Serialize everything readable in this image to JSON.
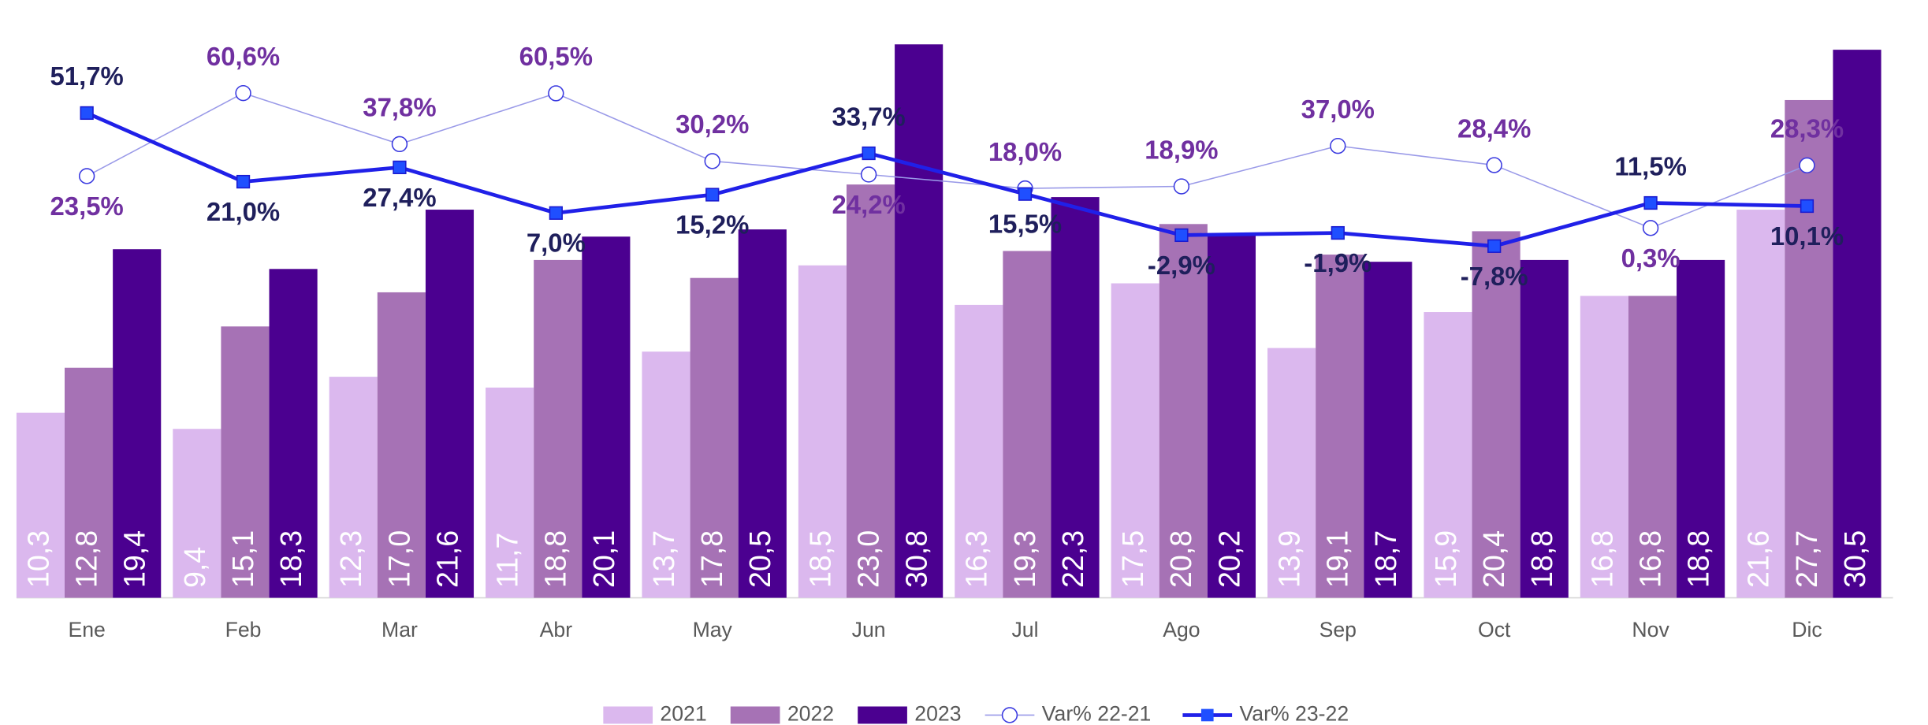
{
  "chart_data": {
    "type": "bar",
    "categories": [
      "Ene",
      "Feb",
      "Mar",
      "Abr",
      "May",
      "Jun",
      "Jul",
      "Ago",
      "Sep",
      "Oct",
      "Nov",
      "Dic"
    ],
    "ylim": [
      0,
      31
    ],
    "y2lim": [
      -165,
      84
    ],
    "legend": "bottom",
    "series": [
      {
        "name": "2021",
        "type": "bar",
        "color": "#dbb8ee",
        "values": [
          10.3,
          9.4,
          12.3,
          11.7,
          13.7,
          18.5,
          16.3,
          17.5,
          13.9,
          15.9,
          16.8,
          21.6
        ],
        "value_labels": [
          "10,3",
          "9,4",
          "12,3",
          "11,7",
          "13,7",
          "18,5",
          "16,3",
          "17,5",
          "13,9",
          "15,9",
          "16,8",
          "21,6"
        ]
      },
      {
        "name": "2022",
        "type": "bar",
        "color": "#a672b5",
        "values": [
          12.8,
          15.1,
          17.0,
          18.8,
          17.8,
          23.0,
          19.3,
          20.8,
          19.1,
          20.4,
          16.8,
          27.7
        ],
        "value_labels": [
          "12,8",
          "15,1",
          "17,0",
          "18,8",
          "17,8",
          "23,0",
          "19,3",
          "20,8",
          "19,1",
          "20,4",
          "16,8",
          "27,7"
        ]
      },
      {
        "name": "2023",
        "type": "bar",
        "color": "#4b0090",
        "values": [
          19.4,
          18.3,
          21.6,
          20.1,
          20.5,
          30.8,
          22.3,
          20.2,
          18.7,
          18.8,
          18.8,
          30.5
        ],
        "value_labels": [
          "19,4",
          "18,3",
          "21,6",
          "20,1",
          "20,5",
          "30,8",
          "22,3",
          "20,2",
          "18,7",
          "18,8",
          "18,8",
          "30,5"
        ]
      },
      {
        "name": "Var% 22-21",
        "type": "line",
        "axis": "y2",
        "color": "#9a9ae8",
        "marker": "circle",
        "label_color": "#7030a0",
        "values": [
          23.5,
          60.6,
          37.8,
          60.5,
          30.2,
          24.2,
          18.0,
          18.9,
          37.0,
          28.4,
          0.3,
          28.3
        ],
        "value_labels": [
          "23,5%",
          "60,6%",
          "37,8%",
          "60,5%",
          "30,2%",
          "24,2%",
          "18,0%",
          "18,9%",
          "37,0%",
          "28,4%",
          "0,3%",
          "28,3%"
        ]
      },
      {
        "name": "Var% 23-22",
        "type": "line",
        "axis": "y2",
        "color": "#2020e8",
        "marker": "square",
        "label_color": "#1f1f5c",
        "values": [
          51.7,
          21.0,
          27.4,
          7.0,
          15.2,
          33.7,
          15.5,
          -2.9,
          -1.9,
          -7.8,
          11.5,
          10.1
        ],
        "value_labels": [
          "51,7%",
          "21,0%",
          "27,4%",
          "7,0%",
          "15,2%",
          "33,7%",
          "15,5%",
          "-2,9%",
          "-1,9%",
          "-7,8%",
          "11,5%",
          "10,1%"
        ]
      }
    ]
  }
}
